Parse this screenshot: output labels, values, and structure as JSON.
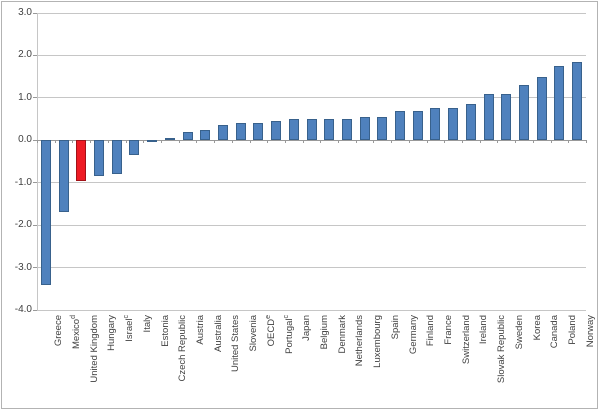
{
  "chart_data": {
    "type": "bar",
    "title": "",
    "xlabel": "",
    "ylabel": "",
    "legend": false,
    "grid": true,
    "ylim": [
      -4.0,
      3.0
    ],
    "yticks": [
      {
        "value": 3.0,
        "label": "3.0"
      },
      {
        "value": 2.0,
        "label": "2.0"
      },
      {
        "value": 1.0,
        "label": "1.0"
      },
      {
        "value": 0.0,
        "label": "0.0"
      },
      {
        "value": -1.0,
        "label": "-1.0"
      },
      {
        "value": -2.0,
        "label": "-2.0"
      },
      {
        "value": -3.0,
        "label": "-3.0"
      },
      {
        "value": -4.0,
        "label": "-4.0"
      }
    ],
    "categories": [
      {
        "label": "Greece",
        "sup": ""
      },
      {
        "label": "Mexico",
        "sup": "d"
      },
      {
        "label": "United Kingdom",
        "sup": ""
      },
      {
        "label": "Hungary",
        "sup": ""
      },
      {
        "label": "Israel",
        "sup": "c"
      },
      {
        "label": "Italy",
        "sup": ""
      },
      {
        "label": "Estonia",
        "sup": ""
      },
      {
        "label": "Czech Republic",
        "sup": ""
      },
      {
        "label": "Austria",
        "sup": ""
      },
      {
        "label": "Australia",
        "sup": ""
      },
      {
        "label": "United States",
        "sup": ""
      },
      {
        "label": "Slovenia",
        "sup": ""
      },
      {
        "label": "OECD",
        "sup": "e"
      },
      {
        "label": "Portugal",
        "sup": "c"
      },
      {
        "label": "Japan",
        "sup": ""
      },
      {
        "label": "Belgium",
        "sup": ""
      },
      {
        "label": "Denmark",
        "sup": ""
      },
      {
        "label": "Netherlands",
        "sup": ""
      },
      {
        "label": "Luxembourg",
        "sup": ""
      },
      {
        "label": "Spain",
        "sup": ""
      },
      {
        "label": "Germany",
        "sup": ""
      },
      {
        "label": "Finland",
        "sup": ""
      },
      {
        "label": "France",
        "sup": ""
      },
      {
        "label": "Switzerland",
        "sup": ""
      },
      {
        "label": "Ireland",
        "sup": ""
      },
      {
        "label": "Slovak Republic",
        "sup": ""
      },
      {
        "label": "Sweden",
        "sup": ""
      },
      {
        "label": "Korea",
        "sup": ""
      },
      {
        "label": "Canada",
        "sup": ""
      },
      {
        "label": "Poland",
        "sup": ""
      },
      {
        "label": "Norway",
        "sup": ""
      }
    ],
    "values": [
      -3.4,
      -1.7,
      -0.95,
      -0.85,
      -0.8,
      -0.35,
      -0.05,
      0.05,
      0.2,
      0.25,
      0.35,
      0.4,
      0.4,
      0.45,
      0.5,
      0.5,
      0.5,
      0.5,
      0.55,
      0.55,
      0.7,
      0.7,
      0.75,
      0.75,
      0.85,
      1.1,
      1.1,
      1.3,
      1.5,
      1.75,
      1.85
    ],
    "highlight": {
      "category": "United Kingdom",
      "index": 2
    },
    "colors": {
      "bar_fill": "#4f81bd",
      "bar_border": "#38618c",
      "highlight_fill": "#ee1b24",
      "highlight_border": "#a11218",
      "gridline": "#c6c6c6",
      "axis_line": "#999999",
      "text": "#404040",
      "frame_border": "#b3b3b3"
    }
  }
}
